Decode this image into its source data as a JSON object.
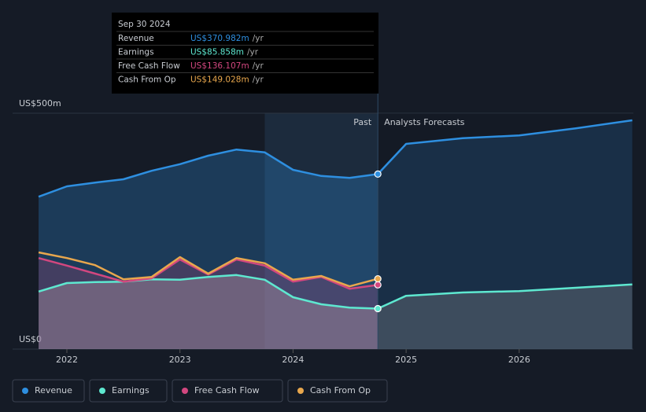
{
  "chart_data": {
    "type": "line",
    "xlim": [
      2021.52,
      2027.01
    ],
    "xticks": [
      2022,
      2023,
      2024,
      2025,
      2026
    ],
    "ylim": [
      0,
      500
    ],
    "yticks": [
      {
        "value": 0,
        "label": "US$0"
      },
      {
        "value": 500,
        "label": "US$500m"
      }
    ],
    "annotations": {
      "past": "Past",
      "forecast": "Analysts Forecasts"
    },
    "series": [
      {
        "name": "Revenue",
        "color": "#2e8fe0",
        "area": true,
        "x": [
          2021.75,
          2022.0,
          2022.25,
          2022.5,
          2022.75,
          2023.0,
          2023.25,
          2023.5,
          2023.75,
          2024.0,
          2024.25,
          2024.5,
          2024.75,
          2025.0,
          2025.5,
          2026.0,
          2026.5,
          2027.0
        ],
        "values": [
          323,
          345,
          353,
          360,
          378,
          392,
          410,
          423,
          417,
          380,
          367,
          363,
          370.982,
          435,
          447,
          453,
          468,
          485
        ]
      },
      {
        "name": "Earnings",
        "color": "#5ee8d0",
        "area": true,
        "x": [
          2021.75,
          2022.0,
          2022.25,
          2022.5,
          2022.75,
          2023.0,
          2023.25,
          2023.5,
          2023.75,
          2024.0,
          2024.25,
          2024.5,
          2024.75,
          2025.0,
          2025.5,
          2026.0,
          2026.5,
          2027.0
        ],
        "values": [
          122,
          140,
          142,
          143,
          148,
          147,
          153,
          157,
          147,
          110,
          95,
          88,
          85.858,
          113,
          120,
          123,
          130,
          137
        ]
      },
      {
        "name": "Free Cash Flow",
        "color": "#d2477f",
        "area": true,
        "x": [
          2021.75,
          2022.0,
          2022.25,
          2022.5,
          2022.75,
          2023.0,
          2023.25,
          2023.5,
          2023.75,
          2024.0,
          2024.25,
          2024.5,
          2024.75
        ],
        "values": [
          193,
          177,
          160,
          143,
          150,
          190,
          158,
          190,
          177,
          143,
          153,
          128,
          136.107
        ]
      },
      {
        "name": "Cash From Op",
        "color": "#e8a74d",
        "area": false,
        "x": [
          2021.75,
          2022.0,
          2022.25,
          2022.5,
          2022.75,
          2023.0,
          2023.25,
          2023.5,
          2023.75,
          2024.0,
          2024.25,
          2024.5,
          2024.75
        ],
        "values": [
          205,
          193,
          178,
          148,
          153,
          195,
          160,
          193,
          182,
          147,
          155,
          133,
          149.028
        ]
      }
    ],
    "tooltip": {
      "title": "Sep 30 2024",
      "rows": [
        {
          "label": "Revenue",
          "value": "US$370.982m",
          "unit": "/yr"
        },
        {
          "label": "Earnings",
          "value": "US$85.858m",
          "unit": "/yr"
        },
        {
          "label": "Free Cash Flow",
          "value": "US$136.107m",
          "unit": "/yr"
        },
        {
          "label": "Cash From Op",
          "value": "US$149.028m",
          "unit": "/yr"
        }
      ]
    }
  }
}
